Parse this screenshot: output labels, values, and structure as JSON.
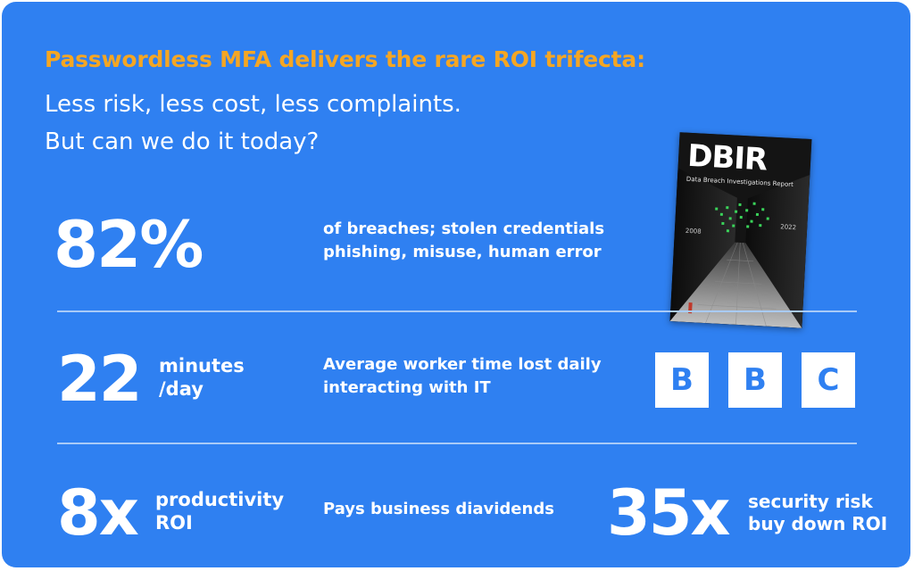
{
  "headline": "Passwordless MFA delivers the rare ROI trifecta:",
  "subheadline": [
    "Less risk, less cost, less complaints.",
    "But can we do it today?"
  ],
  "stats": [
    {
      "value": "82%",
      "unit": "",
      "description": [
        "of breaches; stolen credentials",
        "phishing, misuse, human error"
      ]
    },
    {
      "value": "22",
      "unit": [
        "minutes",
        "/day"
      ],
      "description": [
        "Average worker time lost daily",
        "interacting with IT"
      ]
    },
    {
      "value": "8x",
      "unit": [
        "productivity",
        "ROI"
      ],
      "description": [
        "Pays business diavidends"
      ]
    },
    {
      "value": "35x",
      "unit": [
        "security risk",
        "buy down ROI"
      ]
    }
  ],
  "dbir_cover": {
    "title": "DBIR",
    "subtitle": "Data Breach Investigations Report",
    "year_left": "2008",
    "year_right": "2022"
  },
  "bbc_logo": [
    "B",
    "B",
    "C"
  ],
  "colors": {
    "background": "#2f80f1",
    "headline": "#f5a623",
    "text": "#ffffff",
    "divider": "#a9cbf8"
  }
}
